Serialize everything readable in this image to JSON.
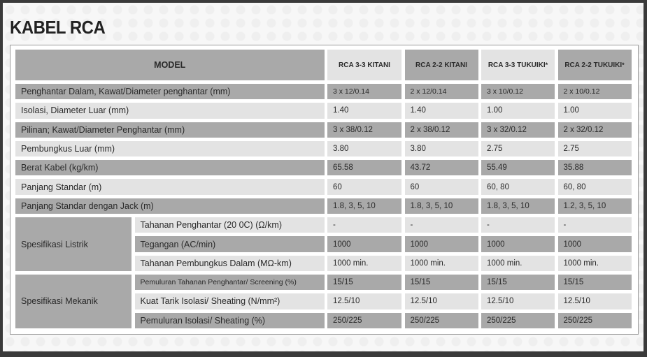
{
  "title": "KABEL RCA",
  "header": {
    "model": "MODEL",
    "columns": [
      "RCA 3-3 KITANI",
      "RCA 2-2 KITANI",
      "RCA 3-3 TUKUIKI",
      "RCA 2-2 TUKUIKI"
    ],
    "asterisk": "*"
  },
  "rows": [
    {
      "label": "Penghantar Dalam, Kawat/Diameter penghantar (mm)",
      "values": [
        "3 x 12/0.14",
        "2 x 12/0.14",
        "3 x 10/0.12",
        "2 x 10/0.12"
      ]
    },
    {
      "label": "Isolasi, Diameter Luar (mm)",
      "values": [
        "1.40",
        "1.40",
        "1.00",
        "1.00"
      ]
    },
    {
      "label": "Pilinan; Kawat/Diameter Penghantar (mm)",
      "values": [
        "3 x 38/0.12",
        "2 x 38/0.12",
        "3 x 32/0.12",
        "2 x 32/0.12"
      ]
    },
    {
      "label": "Pembungkus Luar (mm)",
      "values": [
        "3.80",
        "3.80",
        "2.75",
        "2.75"
      ]
    },
    {
      "label": "Berat Kabel (kg/km)",
      "values": [
        "65.58",
        "43.72",
        "55.49",
        "35.88"
      ]
    },
    {
      "label": "Panjang Standar (m)",
      "values": [
        "60",
        "60",
        "60, 80",
        "60, 80"
      ]
    },
    {
      "label": "Panjang Standar dengan Jack (m)",
      "values": [
        "1.8, 3, 5, 10",
        "1.8, 3, 5, 10",
        "1.8, 3, 5, 10",
        "1.2, 3, 5, 10"
      ]
    }
  ],
  "groups": [
    {
      "label": "Spesifikasi Listrik",
      "rows": [
        {
          "label": "Tahanan Penghantar (20 0C) (Ω/km)",
          "values": [
            "-",
            "-",
            "-",
            "-"
          ]
        },
        {
          "label": "Tegangan (AC/min)",
          "values": [
            "1000",
            "1000",
            "1000",
            "1000"
          ]
        },
        {
          "label": "Tahanan Pembungkus Dalam (MΩ-km)",
          "values": [
            "1000 min.",
            "1000 min.",
            "1000 min.",
            "1000 min."
          ]
        }
      ]
    },
    {
      "label": "Spesifikasi Mekanik",
      "rows": [
        {
          "label": "Pemuluran Tahanan Penghantar/ Screening (%)",
          "values": [
            "15/15",
            "15/15",
            "15/15",
            "15/15"
          ]
        },
        {
          "label": "Kuat Tarik Isolasi/ Sheating (N/mm²)",
          "values": [
            "12.5/10",
            "12.5/10",
            "12.5/10",
            "12.5/10"
          ]
        },
        {
          "label": "Pemuluran Isolasi/ Sheating (%)",
          "values": [
            "250/225",
            "250/225",
            "250/225",
            "250/225"
          ]
        }
      ]
    }
  ]
}
